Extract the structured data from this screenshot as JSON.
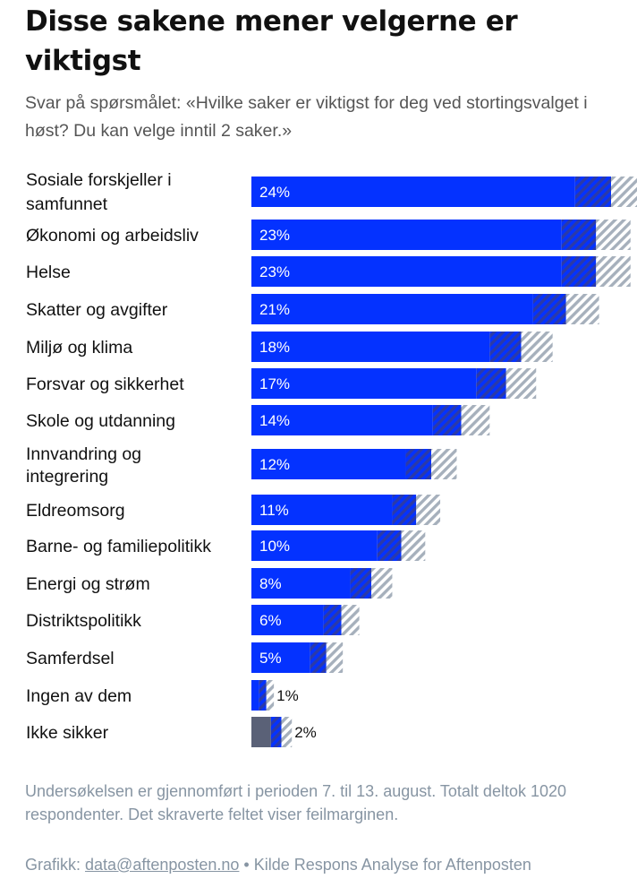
{
  "chart_data": {
    "type": "bar",
    "orientation": "horizontal",
    "title": "Disse sakene mener velgerne er viktigst",
    "subtitle": "Svar på spørsmålet: «Hvilke saker er viktigst for deg ved stortingsvalget i høst? Du kan velge inntil 2 saker.»",
    "categories": [
      "Sosiale forskjeller i samfunnet",
      "Økonomi og arbeidsliv",
      "Helse",
      "Skatter og avgifter",
      "Miljø og klima",
      "Forsvar og sikkerhet",
      "Skole og utdanning",
      "Innvandring og integrering",
      "Eldreomsorg",
      "Barne- og familiepolitikk",
      "Energi og strøm",
      "Distriktspolitikk",
      "Samferdsel",
      "Ingen av dem",
      "Ikke sikker"
    ],
    "values": [
      24,
      23,
      23,
      21,
      18,
      17,
      14,
      12,
      11,
      10,
      8,
      6,
      5,
      1,
      2
    ],
    "value_labels": [
      "24%",
      "23%",
      "23%",
      "21%",
      "18%",
      "17%",
      "14%",
      "12%",
      "11%",
      "10%",
      "8%",
      "6%",
      "5%",
      "1%",
      "2%"
    ],
    "margin_of_error": [
      2.4,
      2.3,
      2.3,
      2.2,
      2.1,
      2.0,
      1.9,
      1.7,
      1.6,
      1.6,
      1.4,
      1.2,
      1.1,
      0.5,
      0.7
    ],
    "xlim": [
      0,
      26
    ],
    "grid": false,
    "legend": "none",
    "colors": {
      "bar": "#0432ff",
      "bar_other": "#5a6177",
      "error_hatch_dark": "#2b3aa8",
      "error_hatch_light": "#a6b0bc",
      "label_inside": "#ffffff",
      "label_outside": "#111111"
    },
    "other_colored_categories": [
      "Ikke sikker"
    ]
  },
  "footer": {
    "note": "Undersøkelsen er gjennomført i perioden 7. til 13. august. Totalt deltok 1020 respondenter. Det skraverte feltet viser feilmarginen.",
    "credit_prefix": "Grafikk: ",
    "credit_email": "data@aftenposten.no",
    "credit_suffix": " • Kilde Respons Analyse for Aftenposten"
  }
}
